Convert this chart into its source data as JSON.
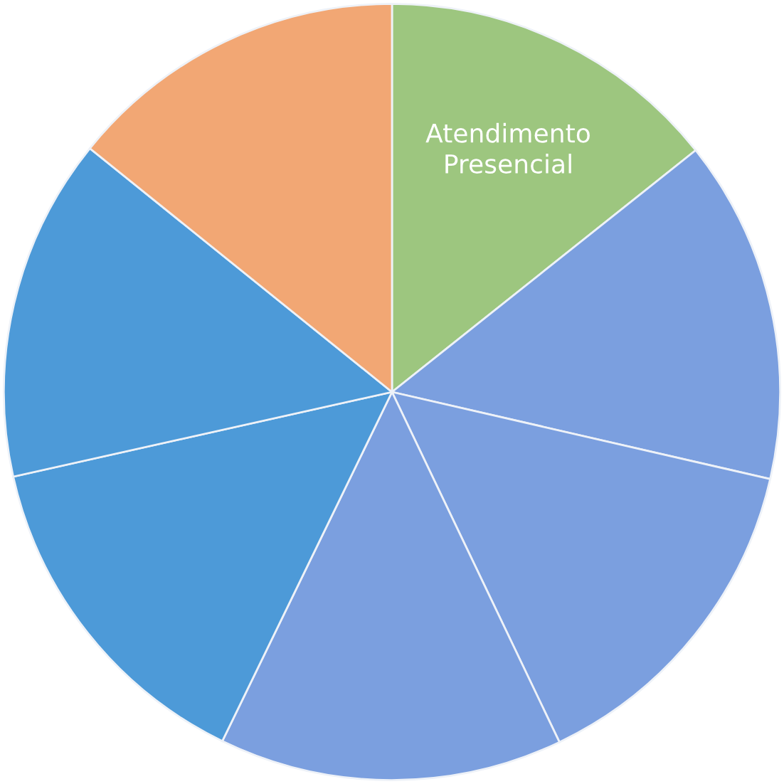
{
  "chart_data": {
    "type": "pie",
    "categories": [
      "Atendimento\nPresencial",
      null,
      null,
      null,
      null,
      null,
      null
    ],
    "values": [
      14.3,
      14.3,
      14.3,
      14.3,
      14.3,
      14.3,
      14.2
    ],
    "colors": [
      "#9dc67f",
      "#7b9fdf",
      "#7b9fdf",
      "#7b9fdf",
      "#4d9ad8",
      "#4d9ad8",
      "#f2a774"
    ],
    "legend": false
  }
}
